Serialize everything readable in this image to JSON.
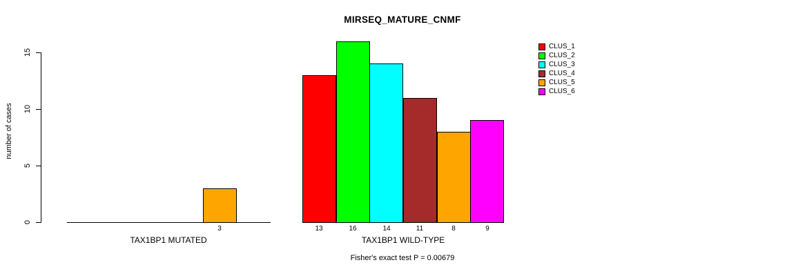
{
  "chart_data": {
    "type": "bar",
    "title": "MIRSEQ_MATURE_CNMF",
    "ylabel": "number of cases",
    "xlabel": "",
    "yticks": [
      0,
      5,
      10,
      15
    ],
    "ylim": [
      0,
      16
    ],
    "grid": false,
    "legend_position": "right",
    "groups": [
      "TAX1BP1 MUTATED",
      "TAX1BP1 WILD-TYPE"
    ],
    "series": [
      {
        "name": "CLUS_1",
        "color": "#FF0000",
        "values": [
          0,
          13
        ]
      },
      {
        "name": "CLUS_2",
        "color": "#00FF00",
        "values": [
          0,
          16
        ]
      },
      {
        "name": "CLUS_3",
        "color": "#00FFFF",
        "values": [
          0,
          14
        ]
      },
      {
        "name": "CLUS_4",
        "color": "#A52A2A",
        "values": [
          0,
          11
        ]
      },
      {
        "name": "CLUS_5",
        "color": "#FFA500",
        "values": [
          3,
          8
        ]
      },
      {
        "name": "CLUS_6",
        "color": "#FF00FF",
        "values": [
          0,
          9
        ]
      }
    ],
    "bar_value_labels": {
      "shown_for": "non-zero values",
      "mutated": [
        "3"
      ],
      "wild_type": [
        "13",
        "16",
        "14",
        "11",
        "8",
        "9"
      ]
    },
    "annotation": "Fisher's exact test P = 0.00679"
  }
}
